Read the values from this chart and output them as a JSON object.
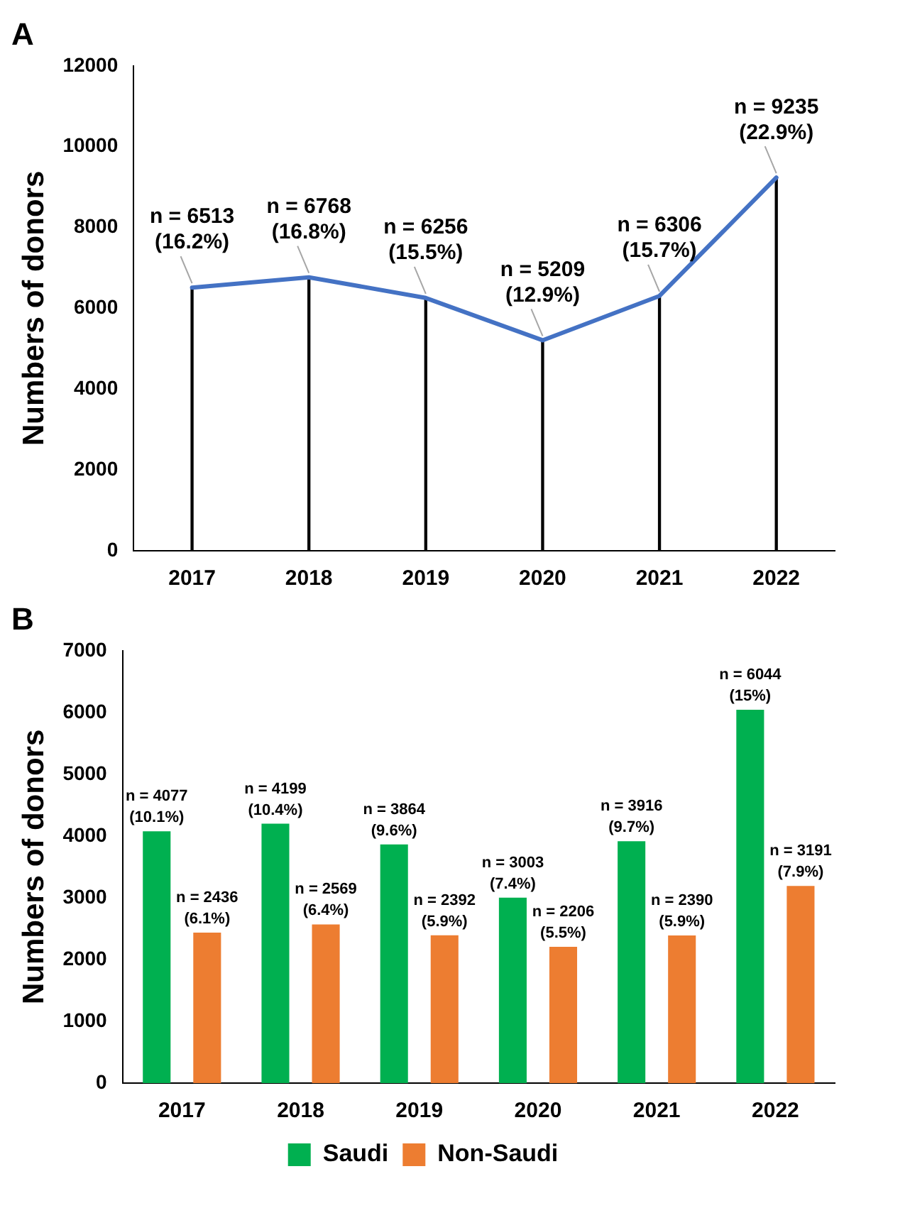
{
  "chart_data": [
    {
      "type": "line",
      "title": "A",
      "ylabel": "Numbers of donors",
      "categories": [
        "2017",
        "2018",
        "2019",
        "2020",
        "2021",
        "2022"
      ],
      "series": [
        {
          "color": "#4472c4",
          "values": [
            6513,
            6768,
            6256,
            5209,
            6306,
            9235
          ],
          "value_labels": [
            "n = 6513\n(16.2%)",
            "n = 6768\n(16.8%)",
            "n = 6256\n(15.5%)",
            "n = 5209\n(12.9%)",
            "n = 6306\n(15.7%)",
            "n = 9235\n(22.9%)"
          ]
        },
        {
          "type": "bar",
          "color": "#000000",
          "values": [
            6513,
            6768,
            6256,
            5209,
            6306,
            9235
          ]
        }
      ],
      "ylim": [
        0,
        12000
      ],
      "yticks": [
        0,
        2000,
        4000,
        6000,
        8000,
        10000,
        12000
      ],
      "grid": false,
      "legend": false,
      "marker": "none",
      "line_style": "solid"
    },
    {
      "type": "bar",
      "title": "B",
      "ylabel": "Numbers of donors",
      "categories": [
        "2017",
        "2018",
        "2019",
        "2020",
        "2021",
        "2022"
      ],
      "series": [
        {
          "name": "Saudi",
          "color": "#00b050",
          "values": [
            4077,
            4199,
            3864,
            3003,
            3916,
            6044
          ],
          "value_labels": [
            "n = 4077\n(10.1%)",
            "n = 4199\n(10.4%)",
            "n = 3864\n(9.6%)",
            "n = 3003\n(7.4%)",
            "n = 3916\n(9.7%)",
            "n = 6044\n(15%)"
          ]
        },
        {
          "name": "Non-Saudi",
          "color": "#ed7d31",
          "values": [
            2436,
            2569,
            2392,
            2206,
            2390,
            3191
          ],
          "value_labels": [
            "n = 2436\n(6.1%)",
            "n = 2569\n(6.4%)",
            "n = 2392\n(5.9%)",
            "n = 2206\n(5.5%)",
            "n = 2390\n(5.9%)",
            "n = 3191\n(7.9%)"
          ]
        }
      ],
      "ylim": [
        0,
        7000
      ],
      "yticks": [
        0,
        1000,
        2000,
        3000,
        4000,
        5000,
        6000,
        7000
      ],
      "grid": false,
      "legend": "bottom"
    }
  ]
}
